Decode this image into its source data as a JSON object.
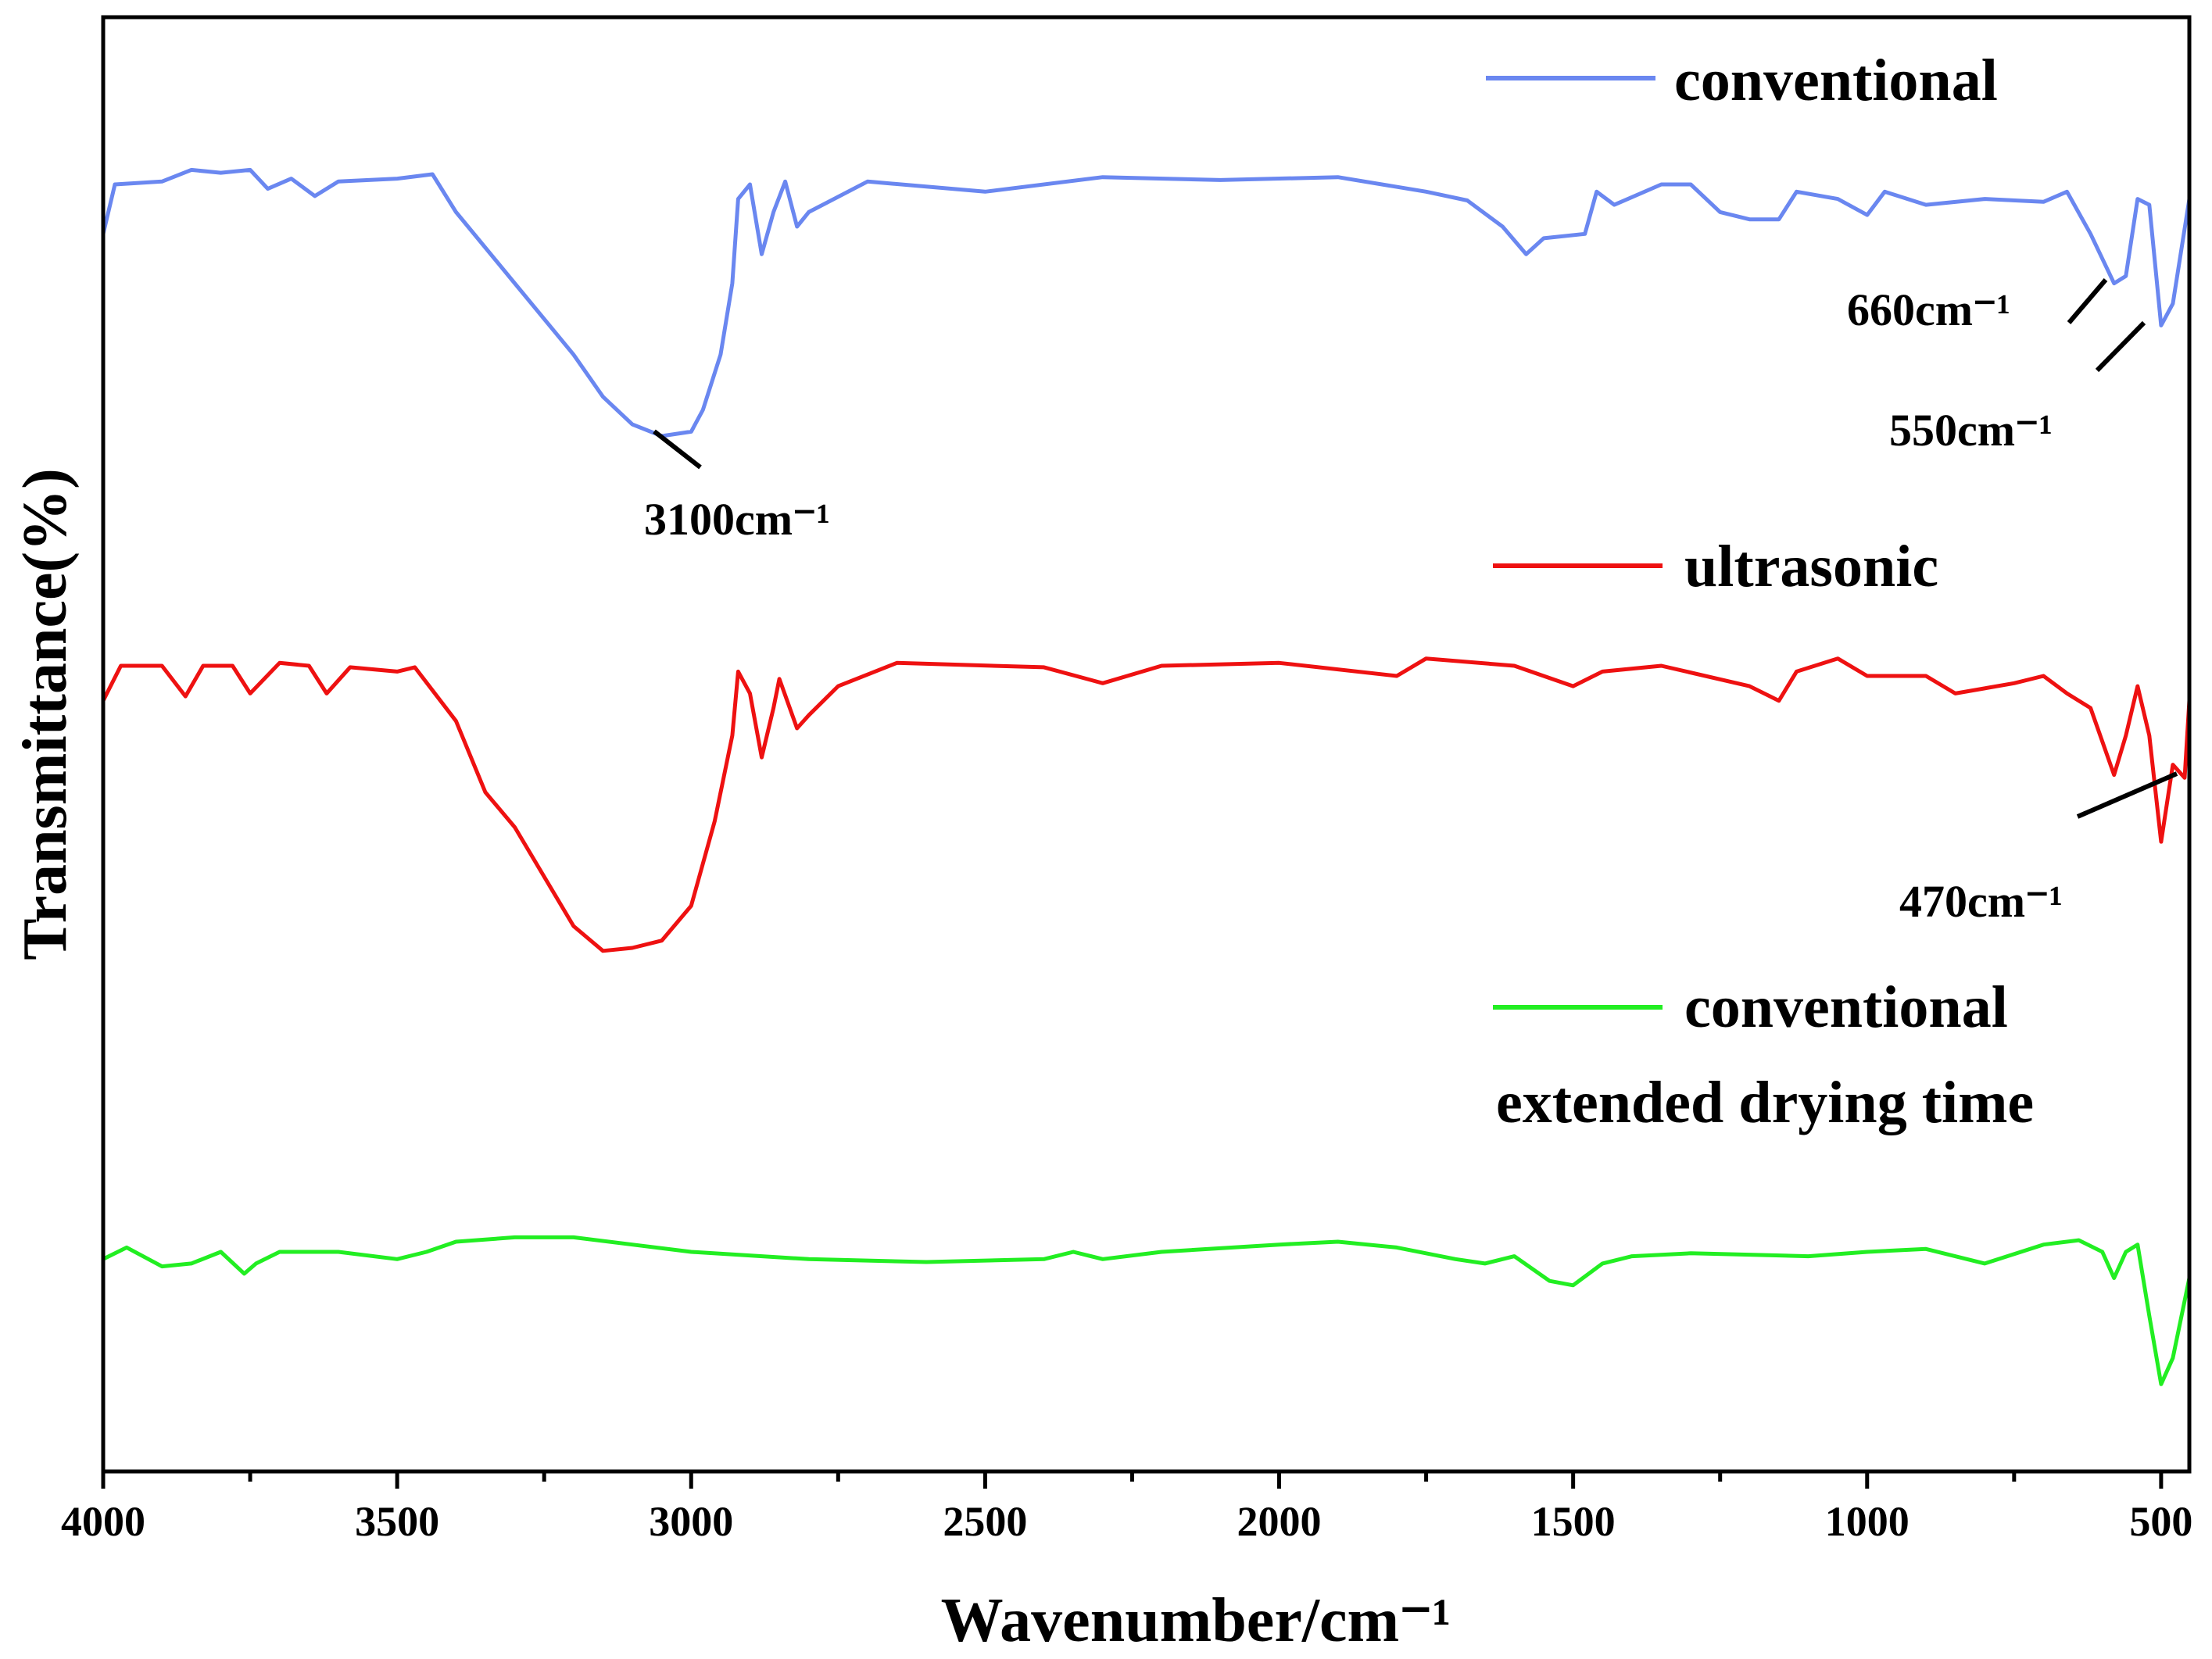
{
  "chart_data": {
    "type": "line",
    "xlabel": "Wavenumber/cm⁻¹",
    "ylabel": "Transmittance(%)",
    "xlim": [
      4000,
      452
    ],
    "ylim": [
      0,
      100
    ],
    "xticks": [
      4000,
      3500,
      3000,
      2500,
      2000,
      1500,
      1000,
      500
    ],
    "xminorticks": [
      3750,
      3250,
      2750,
      2250,
      1750,
      1250,
      750
    ],
    "series": [
      {
        "name": "conventional",
        "color": "#6a87f0",
        "x": [
          4000,
          3980,
          3900,
          3850,
          3800,
          3750,
          3720,
          3680,
          3640,
          3600,
          3500,
          3440,
          3400,
          3300,
          3200,
          3150,
          3100,
          3050,
          3000,
          2980,
          2950,
          2930,
          2920,
          2900,
          2880,
          2860,
          2840,
          2820,
          2800,
          2700,
          2500,
          2300,
          2100,
          1900,
          1750,
          1680,
          1620,
          1580,
          1550,
          1480,
          1460,
          1430,
          1350,
          1300,
          1250,
          1200,
          1150,
          1120,
          1050,
          1000,
          970,
          900,
          800,
          700,
          660,
          620,
          580,
          560,
          540,
          520,
          500,
          480,
          452
        ],
        "values": [
          85.1,
          88.5,
          88.7,
          89.5,
          89.3,
          89.5,
          88.2,
          88.9,
          87.7,
          88.7,
          88.9,
          89.2,
          86.6,
          81.7,
          76.8,
          73.9,
          72.0,
          71.2,
          71.5,
          73.0,
          76.8,
          81.7,
          87.5,
          88.5,
          83.7,
          86.6,
          88.7,
          85.6,
          86.6,
          88.7,
          88.0,
          89.0,
          88.8,
          89.0,
          88.0,
          87.4,
          85.6,
          83.7,
          84.8,
          85.1,
          88.0,
          87.1,
          88.5,
          88.5,
          86.6,
          86.1,
          86.1,
          88.0,
          87.5,
          86.4,
          88.0,
          87.1,
          87.5,
          87.3,
          88.0,
          85.1,
          81.7,
          82.2,
          87.5,
          87.1,
          78.8,
          80.3,
          87.5
        ]
      },
      {
        "name": "ultrasonic",
        "color": "#ee1111",
        "x": [
          4000,
          3970,
          3900,
          3860,
          3830,
          3780,
          3750,
          3700,
          3650,
          3620,
          3580,
          3500,
          3470,
          3400,
          3350,
          3300,
          3250,
          3200,
          3150,
          3100,
          3050,
          3000,
          2960,
          2930,
          2920,
          2900,
          2880,
          2860,
          2850,
          2820,
          2800,
          2750,
          2650,
          2400,
          2300,
          2200,
          2000,
          1800,
          1750,
          1600,
          1500,
          1450,
          1350,
          1200,
          1150,
          1120,
          1050,
          1000,
          900,
          850,
          750,
          700,
          660,
          620,
          580,
          560,
          540,
          520,
          500,
          480,
          460,
          452
        ],
        "values": [
          53.0,
          55.4,
          55.4,
          53.3,
          55.4,
          55.4,
          53.5,
          55.6,
          55.4,
          53.5,
          55.3,
          55.0,
          55.3,
          51.6,
          46.7,
          44.3,
          40.9,
          37.5,
          35.8,
          36.0,
          36.5,
          38.9,
          44.7,
          50.6,
          55.0,
          53.5,
          49.1,
          52.5,
          54.5,
          51.1,
          52.0,
          54.0,
          55.6,
          55.3,
          54.2,
          55.4,
          55.6,
          54.7,
          55.9,
          55.4,
          54.0,
          55.0,
          55.4,
          54.0,
          53.0,
          55.0,
          55.9,
          54.7,
          54.7,
          53.5,
          54.2,
          54.7,
          53.5,
          52.5,
          47.9,
          50.6,
          54.0,
          50.6,
          43.3,
          48.6,
          47.7,
          53.0
        ]
      },
      {
        "name": "conventional extended drying time",
        "color": "#22ee22",
        "x": [
          4000,
          3960,
          3900,
          3850,
          3800,
          3760,
          3740,
          3700,
          3600,
          3500,
          3450,
          3400,
          3300,
          3200,
          3100,
          3000,
          2800,
          2600,
          2400,
          2350,
          2300,
          2200,
          2000,
          1900,
          1800,
          1700,
          1650,
          1600,
          1540,
          1500,
          1450,
          1400,
          1300,
          1100,
          1000,
          900,
          800,
          700,
          640,
          600,
          580,
          560,
          540,
          520,
          500,
          480,
          452
        ],
        "values": [
          14.6,
          15.4,
          14.1,
          14.3,
          15.1,
          13.6,
          14.3,
          15.1,
          15.1,
          14.6,
          15.1,
          15.8,
          16.1,
          16.1,
          15.6,
          15.1,
          14.6,
          14.4,
          14.6,
          15.1,
          14.6,
          15.1,
          15.6,
          15.8,
          15.4,
          14.6,
          14.3,
          14.8,
          13.1,
          12.8,
          14.3,
          14.8,
          15.0,
          14.8,
          15.1,
          15.3,
          14.3,
          15.6,
          15.9,
          15.1,
          13.3,
          15.1,
          15.6,
          10.7,
          6.0,
          7.8,
          13.3
        ]
      }
    ],
    "annotations": [
      {
        "text": "3100cm⁻¹"
      },
      {
        "text": "660cm⁻¹"
      },
      {
        "text": "550cm⁻¹"
      },
      {
        "text": "470cm⁻¹"
      }
    ]
  }
}
